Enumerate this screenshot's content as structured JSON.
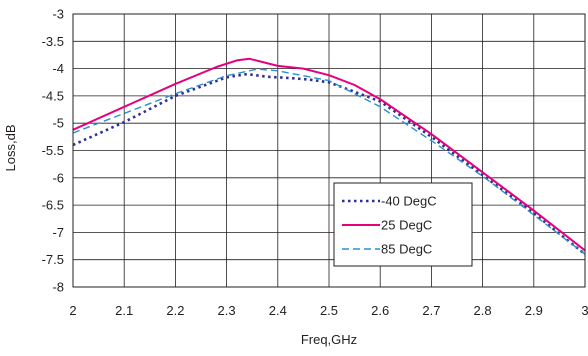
{
  "chart_data": {
    "type": "line",
    "title": "",
    "xlabel": "Freq,GHz",
    "ylabel": "Loss,dB",
    "xlim": [
      2,
      3
    ],
    "ylim": [
      -8,
      -3
    ],
    "xticks": [
      "2",
      "2.1",
      "2.2",
      "2.3",
      "2.4",
      "2.5",
      "2.6",
      "2.7",
      "2.8",
      "2.9",
      "3"
    ],
    "yticks": [
      "-3",
      "-3.5",
      "-4",
      "-4.5",
      "-5",
      "-5.5",
      "-6",
      "-6.5",
      "-7",
      "-7.5",
      "-8"
    ],
    "grid": true,
    "legend_position": "lower-right",
    "series": [
      {
        "name": "-40 DegC",
        "color": "#2e3192",
        "style": "dotted",
        "x": [
          2.0,
          2.1,
          2.2,
          2.3,
          2.34,
          2.38,
          2.42,
          2.46,
          2.5,
          2.6,
          2.7,
          2.8,
          2.9,
          3.0
        ],
        "y": [
          -5.4,
          -4.98,
          -4.5,
          -4.16,
          -4.1,
          -4.15,
          -4.17,
          -4.2,
          -4.25,
          -4.6,
          -5.25,
          -5.95,
          -6.65,
          -7.4
        ]
      },
      {
        "name": "25 DegC",
        "color": "#e6007e",
        "style": "solid",
        "x": [
          2.0,
          2.1,
          2.2,
          2.28,
          2.32,
          2.345,
          2.37,
          2.4,
          2.45,
          2.5,
          2.55,
          2.6,
          2.7,
          2.8,
          2.9,
          3.0
        ],
        "y": [
          -5.12,
          -4.7,
          -4.28,
          -3.97,
          -3.85,
          -3.82,
          -3.88,
          -3.95,
          -4.0,
          -4.12,
          -4.3,
          -4.56,
          -5.2,
          -5.9,
          -6.6,
          -7.33
        ]
      },
      {
        "name": "85 DegC",
        "color": "#2a8fd0",
        "style": "dashed",
        "x": [
          2.0,
          2.1,
          2.2,
          2.3,
          2.36,
          2.4,
          2.5,
          2.6,
          2.7,
          2.8,
          2.9,
          3.0
        ],
        "y": [
          -5.18,
          -4.82,
          -4.46,
          -4.13,
          -4.01,
          -4.04,
          -4.22,
          -4.7,
          -5.32,
          -5.97,
          -6.68,
          -7.4
        ]
      }
    ]
  }
}
